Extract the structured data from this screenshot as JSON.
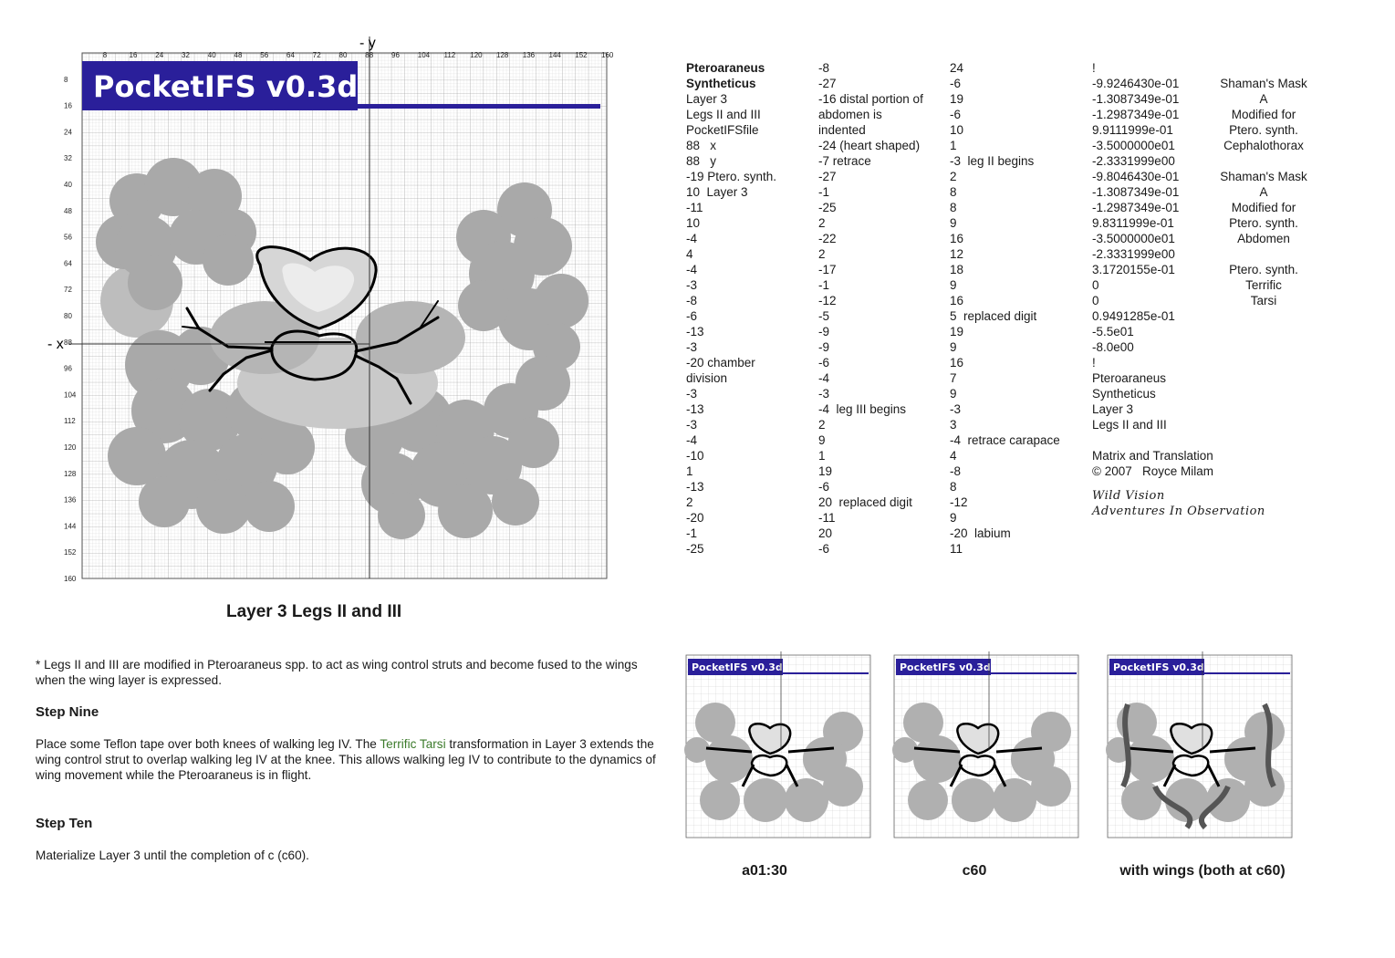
{
  "figure": {
    "app_title": "PocketIFS v0.3d",
    "x_ticks": [
      "8",
      "16",
      "24",
      "32",
      "40",
      "48",
      "56",
      "64",
      "72",
      "80",
      "88",
      "96",
      "104",
      "112",
      "120",
      "128",
      "136",
      "144",
      "152",
      "160"
    ],
    "y_ticks": [
      "8",
      "16",
      "24",
      "32",
      "40",
      "48",
      "56",
      "64",
      "72",
      "80",
      "88",
      "96",
      "104",
      "112",
      "120",
      "128",
      "136",
      "144",
      "152",
      "160"
    ],
    "neg_y_label": "- y",
    "neg_x_label": "- x",
    "caption": "Layer 3   Legs II and III",
    "colors": {
      "banner": "#2a1f9a",
      "fractal_dark": "#a9a9a9",
      "fractal_light": "#cfcfcf",
      "outline": "#000000"
    }
  },
  "table": {
    "col1": [
      "Pteroaraneus",
      "Syntheticus",
      "Layer 3",
      "Legs II and III",
      "PocketIFSfile",
      "88   x",
      "88   y",
      "-19 Ptero. synth.",
      "10  Layer 3",
      "-11",
      "10",
      "-4",
      "4",
      "-4",
      "-3",
      "-8",
      "-6",
      "-13",
      "-3",
      "-20 chamber",
      "division",
      "-3",
      "-13",
      "-3",
      "-4",
      "-10",
      "1",
      "-13",
      "2",
      "-20",
      "-1",
      "-25"
    ],
    "col2": [
      "-8",
      "-27",
      "-16 distal portion of",
      "abdomen is",
      "indented",
      "-24 (heart shaped)",
      "-7 retrace",
      "-27",
      "-1",
      "-25",
      "2",
      "-22",
      "2",
      "-17",
      "-1",
      "-12",
      "-5",
      "-9",
      "-9",
      "-6",
      "-4",
      "-3",
      "-4  leg III begins",
      "2",
      "9",
      "1",
      "19",
      "-6",
      "20  replaced digit",
      "-11",
      "20",
      "-6"
    ],
    "col3": [
      "24",
      "-6",
      "19",
      "-6",
      "10",
      "1",
      "-3  leg II begins",
      "2",
      "8",
      "8",
      "9",
      "16",
      "12",
      "18",
      "9",
      "16",
      "5  replaced digit",
      "19",
      "9",
      "16",
      "7",
      "9",
      "-3",
      "3",
      "-4  retrace carapace",
      "4",
      "-8",
      "8",
      "-12",
      "9",
      "-20  labium",
      "11"
    ],
    "col4": [
      {
        "v": "!",
        "n": ""
      },
      {
        "v": "-9.9246430e-01",
        "n": "Shaman's Mask"
      },
      {
        "v": "-1.3087349e-01",
        "n": "A"
      },
      {
        "v": "-1.2987349e-01",
        "n": "Modified for"
      },
      {
        "v": "9.9111999e-01",
        "n": "Ptero. synth."
      },
      {
        "v": "-3.5000000e01",
        "n": "Cephalothorax"
      },
      {
        "v": "-2.3331999e00",
        "n": ""
      },
      {
        "v": "-9.8046430e-01",
        "n": "Shaman's Mask"
      },
      {
        "v": "-1.3087349e-01",
        "n": "A"
      },
      {
        "v": "-1.2987349e-01",
        "n": "Modified for"
      },
      {
        "v": "9.8311999e-01",
        "n": "Ptero. synth."
      },
      {
        "v": "-3.5000000e01",
        "n": "Abdomen"
      },
      {
        "v": "-2.3331999e00",
        "n": ""
      },
      {
        "v": "3.1720155e-01",
        "n": "Ptero. synth."
      },
      {
        "v": "0",
        "n": "Terrific"
      },
      {
        "v": "0",
        "n": "Tarsi"
      },
      {
        "v": "0.9491285e-01",
        "n": ""
      },
      {
        "v": "-5.5e01",
        "n": ""
      },
      {
        "v": "-8.0e00",
        "n": ""
      },
      {
        "v": "!",
        "n": ""
      },
      {
        "v": "Pteroaraneus",
        "n": ""
      },
      {
        "v": "Syntheticus",
        "n": ""
      },
      {
        "v": "Layer 3",
        "n": ""
      },
      {
        "v": "Legs II and III",
        "n": ""
      },
      {
        "v": "",
        "n": ""
      },
      {
        "v": "Matrix and Translation",
        "n": ""
      },
      {
        "v": "© 2007   Royce Milam",
        "n": ""
      }
    ],
    "brand_line1": "Wild Vision",
    "brand_line2": "Adventures In Observation"
  },
  "text": {
    "note": "* Legs II and III are modified in Pteroaraneus spp. to act as wing control struts and become fused to the wings when the wing layer is expressed.",
    "step9_title": "Step Nine",
    "step9_a": "Place some Teflon tape over both knees of walking leg IV.  The ",
    "step9_link": "Terrific Tarsi",
    "step9_b": " transformation in Layer 3 extends the wing control strut to overlap walking leg IV at the knee.  This allows walking leg IV to contribute to the dynamics of wing movement while the Pteroaraneus is in flight.",
    "step10_title": "Step Ten",
    "step10_body": "Materialize Layer 3 until the completion of c (c60)."
  },
  "thumbnails": [
    {
      "caption": "a01:30",
      "title": "PocketIFS v0.3d"
    },
    {
      "caption": "c60",
      "title": "PocketIFS v0.3d"
    },
    {
      "caption": "with wings (both at c60)",
      "title": "PocketIFS v0.3d"
    }
  ]
}
